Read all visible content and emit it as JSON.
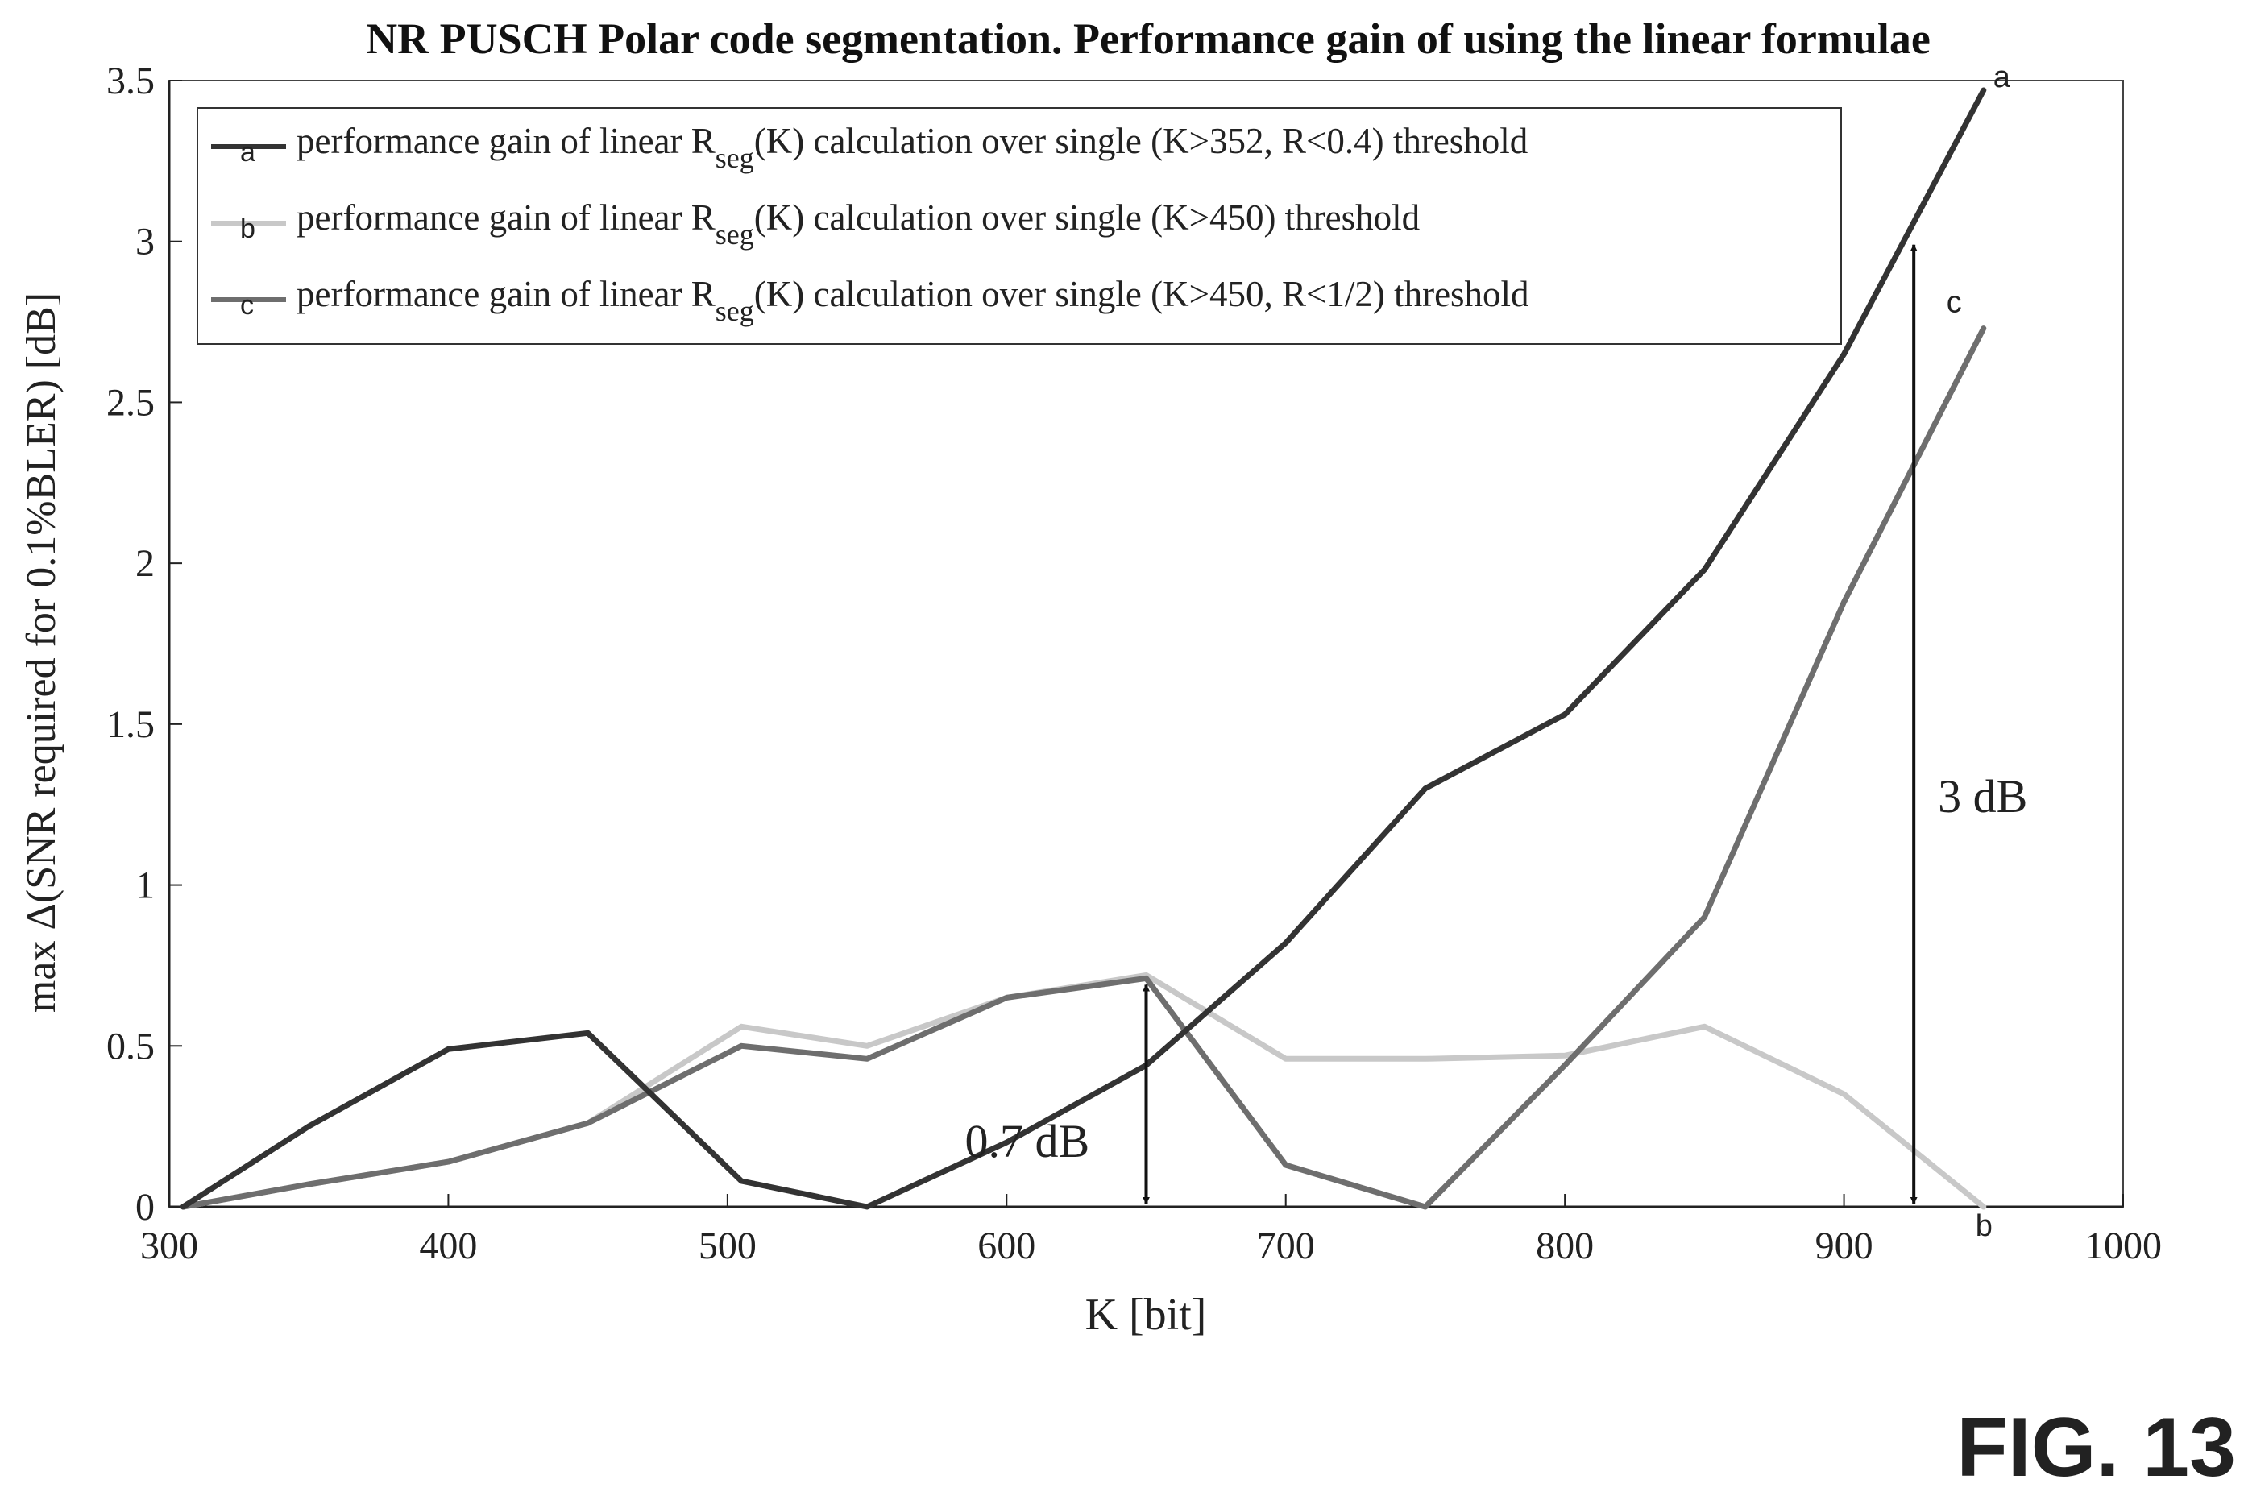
{
  "figure_label": "FIG. 13",
  "chart_data": {
    "type": "line",
    "title": "NR PUSCH Polar code segmentation. Performance gain of using the linear formulae",
    "xlabel": "K [bit]",
    "ylabel": "max Δ(SNR required for 0.1%BLER) [dB]",
    "xlim": [
      300,
      1000
    ],
    "ylim": [
      0,
      3.5
    ],
    "xticks": [
      300,
      400,
      500,
      600,
      700,
      800,
      900,
      1000
    ],
    "yticks": [
      0,
      0.5,
      1,
      1.5,
      2,
      2.5,
      3,
      3.5
    ],
    "grid": false,
    "legend_position": "top-left",
    "series": [
      {
        "name": "performance gain of linear Rseg(K) calculation over single (K>352, R<0.4) threshold",
        "legend_main": "performance gain of linear R",
        "legend_sub": "seg",
        "legend_tail": "(K) calculation over single (K>352, R<0.4) threshold",
        "marker_label": "a",
        "color": "#333333",
        "x": [
          305,
          350,
          400,
          450,
          505,
          550,
          600,
          650,
          700,
          750,
          800,
          850,
          900,
          950
        ],
        "y": [
          0,
          0.25,
          0.49,
          0.54,
          0.08,
          0,
          0.2,
          0.44,
          0.82,
          1.3,
          1.53,
          1.98,
          2.65,
          3.47
        ]
      },
      {
        "name": "performance gain of linear Rseg(K) calculation over single (K>450) threshold",
        "legend_main": "performance gain of linear R",
        "legend_sub": "seg",
        "legend_tail": "(K) calculation over single (K>450) threshold",
        "marker_label": "b",
        "color": "#c8c8c8",
        "x": [
          305,
          350,
          400,
          450,
          505,
          550,
          600,
          650,
          700,
          750,
          800,
          850,
          900,
          950
        ],
        "y": [
          0,
          0.07,
          0.14,
          0.26,
          0.56,
          0.5,
          0.65,
          0.72,
          0.46,
          0.46,
          0.47,
          0.56,
          0.35,
          0
        ]
      },
      {
        "name": "performance gain of linear Rseg(K) calculation over single (K>450, R<1/2) threshold",
        "legend_main": "performance gain of linear R",
        "legend_sub": "seg",
        "legend_tail": "(K) calculation over single (K>450, R<1/2) threshold",
        "marker_label": "c",
        "color": "#6e6e6e",
        "x": [
          305,
          350,
          400,
          450,
          505,
          550,
          600,
          650,
          700,
          750,
          800,
          850,
          900,
          950
        ],
        "y": [
          0,
          0.07,
          0.14,
          0.26,
          0.5,
          0.46,
          0.65,
          0.71,
          0.13,
          0,
          0.44,
          0.9,
          1.88,
          2.73
        ]
      }
    ],
    "annotations": [
      {
        "text": "0.7 dB",
        "x": 650,
        "y_from": 0,
        "y_to": 0.7
      },
      {
        "text": "3 dB",
        "x": 925,
        "y_from": 0,
        "y_to": 3.0
      }
    ]
  }
}
